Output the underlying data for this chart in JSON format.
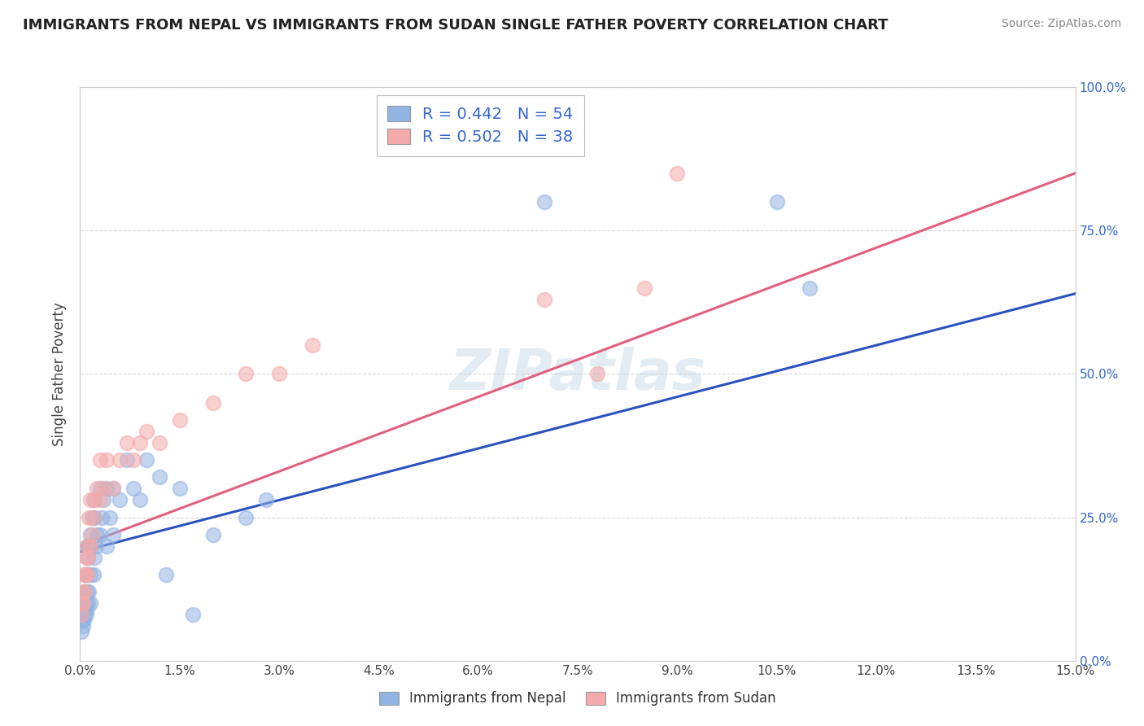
{
  "title": "IMMIGRANTS FROM NEPAL VS IMMIGRANTS FROM SUDAN SINGLE FATHER POVERTY CORRELATION CHART",
  "source": "Source: ZipAtlas.com",
  "ylabel": "Single Father Poverty",
  "xlim": [
    0.0,
    0.15
  ],
  "ylim": [
    0.0,
    1.0
  ],
  "xticks": [
    0.0,
    0.015,
    0.03,
    0.045,
    0.06,
    0.075,
    0.09,
    0.105,
    0.12,
    0.135,
    0.15
  ],
  "yticks": [
    0.0,
    0.25,
    0.5,
    0.75,
    1.0
  ],
  "nepal_R": 0.442,
  "nepal_N": 54,
  "sudan_R": 0.502,
  "sudan_N": 38,
  "nepal_color": "#92B4E3",
  "sudan_color": "#F4AAAA",
  "nepal_line_color": "#2A52BE",
  "sudan_line_color": "#E0607E",
  "watermark": "ZIPatlas",
  "nepal_x": [
    0.0002,
    0.0003,
    0.0004,
    0.0005,
    0.0005,
    0.0006,
    0.0007,
    0.0007,
    0.0008,
    0.0008,
    0.0009,
    0.001,
    0.001,
    0.001,
    0.001,
    0.0012,
    0.0012,
    0.0013,
    0.0013,
    0.0015,
    0.0015,
    0.0016,
    0.0017,
    0.0018,
    0.002,
    0.002,
    0.0022,
    0.0022,
    0.0024,
    0.0025,
    0.003,
    0.003,
    0.0032,
    0.0035,
    0.004,
    0.004,
    0.0045,
    0.005,
    0.005,
    0.006,
    0.007,
    0.008,
    0.009,
    0.01,
    0.012,
    0.013,
    0.015,
    0.017,
    0.02,
    0.025,
    0.028,
    0.07,
    0.105,
    0.11
  ],
  "nepal_y": [
    0.05,
    0.07,
    0.06,
    0.08,
    0.1,
    0.07,
    0.08,
    0.12,
    0.1,
    0.15,
    0.08,
    0.09,
    0.12,
    0.15,
    0.2,
    0.1,
    0.18,
    0.12,
    0.2,
    0.1,
    0.22,
    0.15,
    0.2,
    0.25,
    0.15,
    0.28,
    0.18,
    0.25,
    0.2,
    0.22,
    0.22,
    0.3,
    0.25,
    0.28,
    0.2,
    0.3,
    0.25,
    0.22,
    0.3,
    0.28,
    0.35,
    0.3,
    0.28,
    0.35,
    0.32,
    0.15,
    0.3,
    0.08,
    0.22,
    0.25,
    0.28,
    0.8,
    0.8,
    0.65
  ],
  "sudan_x": [
    0.0002,
    0.0003,
    0.0004,
    0.0005,
    0.0006,
    0.0007,
    0.0008,
    0.0009,
    0.001,
    0.001,
    0.0012,
    0.0013,
    0.0015,
    0.0016,
    0.0018,
    0.002,
    0.0022,
    0.0025,
    0.003,
    0.003,
    0.0035,
    0.004,
    0.005,
    0.006,
    0.007,
    0.008,
    0.009,
    0.01,
    0.012,
    0.015,
    0.02,
    0.025,
    0.03,
    0.035,
    0.07,
    0.078,
    0.085,
    0.09
  ],
  "sudan_y": [
    0.08,
    0.1,
    0.1,
    0.12,
    0.15,
    0.12,
    0.15,
    0.18,
    0.15,
    0.2,
    0.18,
    0.25,
    0.2,
    0.28,
    0.22,
    0.25,
    0.28,
    0.3,
    0.28,
    0.35,
    0.3,
    0.35,
    0.3,
    0.35,
    0.38,
    0.35,
    0.38,
    0.4,
    0.38,
    0.42,
    0.45,
    0.5,
    0.5,
    0.55,
    0.63,
    0.5,
    0.65,
    0.85
  ],
  "nepal_trend": [
    0.0,
    0.15,
    0.19,
    0.64
  ],
  "sudan_trend": [
    0.0,
    0.15,
    0.2,
    0.85
  ]
}
